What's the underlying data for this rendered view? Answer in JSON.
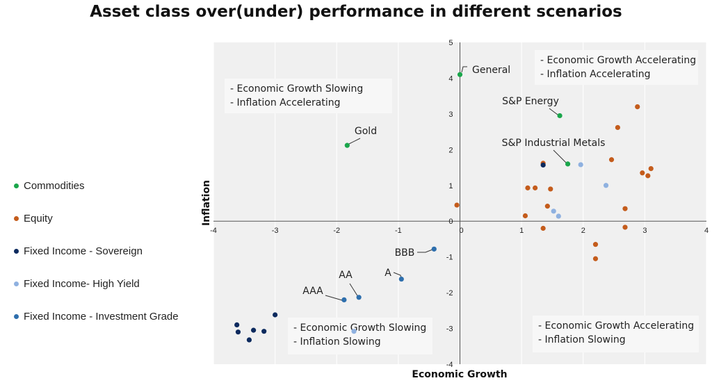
{
  "title": "Asset class over(under) performance in different scenarios",
  "legend": [
    {
      "label": "Commodities",
      "color": "#1aa64b"
    },
    {
      "label": "Equity",
      "color": "#c45c1c"
    },
    {
      "label": "Fixed Income - Sovereign",
      "color": "#0c2a5e"
    },
    {
      "label": "Fixed Income- High Yield",
      "color": "#8fb1e0"
    },
    {
      "label": "Fixed Income - Investment Grade",
      "color": "#2e6fad"
    }
  ],
  "quadrants": {
    "top_left": [
      "- Economic Growth Slowing",
      "- Inflation Accelerating"
    ],
    "top_right": [
      "- Economic Growth Accelerating",
      "- Inflation Accelerating"
    ],
    "bottom_left": [
      "- Economic Growth Slowing",
      "- Inflation Slowing"
    ],
    "bottom_right": [
      "- Economic Growth Accelerating",
      "- Inflation Slowing"
    ]
  },
  "chart_data": {
    "type": "scatter",
    "title": "Asset class over(under) performance in different scenarios",
    "xlabel": "Economic Growth",
    "ylabel": "Inflation",
    "xlim": [
      -4,
      4
    ],
    "ylim": [
      -4,
      5
    ],
    "xticks": [
      "-4",
      "-3",
      "-2",
      "-1",
      "0",
      "1",
      "2",
      "3",
      "4"
    ],
    "yticks": [
      "-4",
      "-3",
      "-2",
      "-1",
      "0",
      "1",
      "2",
      "3",
      "4",
      "5"
    ],
    "grid": true,
    "legend_position": "left",
    "series": [
      {
        "name": "Commodities",
        "color": "#1aa64b",
        "points": [
          [
            0.0,
            4.1
          ],
          [
            1.62,
            2.95
          ],
          [
            -1.83,
            2.12
          ],
          [
            1.75,
            1.6
          ]
        ]
      },
      {
        "name": "Equity",
        "color": "#c45c1c",
        "points": [
          [
            2.88,
            3.2
          ],
          [
            2.56,
            2.62
          ],
          [
            2.46,
            1.72
          ],
          [
            2.96,
            1.35
          ],
          [
            3.1,
            1.47
          ],
          [
            3.05,
            1.27
          ],
          [
            1.1,
            0.93
          ],
          [
            1.22,
            0.93
          ],
          [
            1.47,
            0.9
          ],
          [
            1.35,
            1.62
          ],
          [
            1.42,
            0.42
          ],
          [
            2.68,
            0.35
          ],
          [
            -0.05,
            0.45
          ],
          [
            1.06,
            0.15
          ],
          [
            1.35,
            -0.2
          ],
          [
            2.68,
            -0.17
          ],
          [
            2.2,
            -0.65
          ],
          [
            2.2,
            -1.05
          ]
        ]
      },
      {
        "name": "Fixed Income - Sovereign",
        "color": "#0c2a5e",
        "points": [
          [
            1.35,
            1.57
          ],
          [
            -3.0,
            -2.62
          ],
          [
            -3.62,
            -2.9
          ],
          [
            -3.6,
            -3.1
          ],
          [
            -3.35,
            -3.05
          ],
          [
            -3.18,
            -3.08
          ],
          [
            -3.42,
            -3.32
          ]
        ]
      },
      {
        "name": "Fixed Income- High Yield",
        "color": "#8fb1e0",
        "points": [
          [
            1.96,
            1.58
          ],
          [
            2.37,
            1.0
          ],
          [
            1.52,
            0.28
          ],
          [
            1.6,
            0.14
          ],
          [
            -1.72,
            -3.08
          ]
        ]
      },
      {
        "name": "Fixed Income - Investment Grade",
        "color": "#2e6fad",
        "points": [
          [
            -0.42,
            -0.78
          ],
          [
            -0.95,
            -1.62
          ],
          [
            -1.64,
            -2.13
          ],
          [
            -1.88,
            -2.2
          ]
        ]
      }
    ],
    "annotations": [
      {
        "text": "General",
        "x": 0.0,
        "y": 4.1
      },
      {
        "text": "S&P Energy",
        "x": 1.62,
        "y": 2.95
      },
      {
        "text": "Gold",
        "x": -1.83,
        "y": 2.12
      },
      {
        "text": "S&P Industrial Metals",
        "x": 1.75,
        "y": 1.6
      },
      {
        "text": "BBB",
        "x": -0.42,
        "y": -0.78
      },
      {
        "text": "A",
        "x": -0.95,
        "y": -1.62
      },
      {
        "text": "AA",
        "x": -1.64,
        "y": -2.13
      },
      {
        "text": "AAA",
        "x": -1.88,
        "y": -2.2
      }
    ]
  }
}
